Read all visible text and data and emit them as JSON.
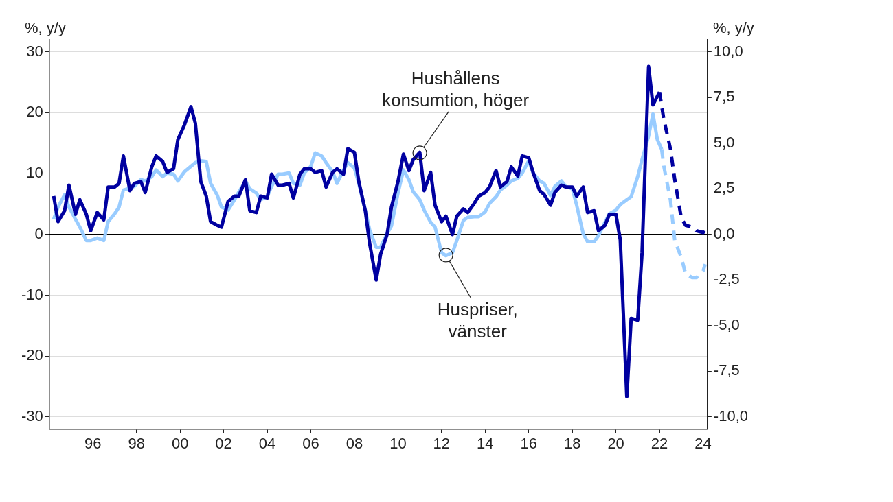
{
  "chart_data": {
    "type": "line",
    "ylabel": "%, y/y",
    "y2label": "%, y/y",
    "xlim": [
      1994,
      2024.2
    ],
    "xticks": [
      {
        "value": 1996,
        "label": "96"
      },
      {
        "value": 1998,
        "label": "98"
      },
      {
        "value": 2000,
        "label": "00"
      },
      {
        "value": 2002,
        "label": "02"
      },
      {
        "value": 2004,
        "label": "04"
      },
      {
        "value": 2006,
        "label": "06"
      },
      {
        "value": 2008,
        "label": "08"
      },
      {
        "value": 2010,
        "label": "10"
      },
      {
        "value": 2012,
        "label": "12"
      },
      {
        "value": 2014,
        "label": "14"
      },
      {
        "value": 2016,
        "label": "16"
      },
      {
        "value": 2018,
        "label": "18"
      },
      {
        "value": 2020,
        "label": "20"
      },
      {
        "value": 2022,
        "label": "22"
      },
      {
        "value": 2024,
        "label": "24"
      }
    ],
    "ylim": [
      -32,
      32
    ],
    "yticks": [
      -30,
      -20,
      -10,
      0,
      10,
      20,
      30
    ],
    "y2lim": [
      -10.67,
      10.67
    ],
    "y2ticks": [
      {
        "value": -10,
        "label": "-10,0"
      },
      {
        "value": -7.5,
        "label": "-7,5"
      },
      {
        "value": -5,
        "label": "-5,0"
      },
      {
        "value": -2.5,
        "label": "-2,5"
      },
      {
        "value": 0,
        "label": "0,0"
      },
      {
        "value": 2.5,
        "label": "2,5"
      },
      {
        "value": 5,
        "label": "5,0"
      },
      {
        "value": 7.5,
        "label": "7,5"
      },
      {
        "value": 10,
        "label": "10,0"
      }
    ],
    "grid": "y",
    "marker": "none",
    "legend": false,
    "ref_lines": [
      {
        "axis": "y",
        "value": 0,
        "color": "#000000"
      }
    ],
    "annotations": [
      {
        "text": "Hushållens konsumtion, höger",
        "x": 2011.0,
        "y": 13.4
      },
      {
        "text": "Huspriser, vänster",
        "x": 2012.2,
        "y": -3.4
      }
    ],
    "series": [
      {
        "color": "#0000a0",
        "axis": "y2",
        "line_style": "solid",
        "x": [
          1994.2,
          1994.4,
          1994.7,
          1994.9,
          1995.2,
          1995.4,
          1995.7,
          1995.9,
          1996.2,
          1996.5,
          1996.7,
          1997.0,
          1997.2,
          1997.4,
          1997.7,
          1997.9,
          1998.2,
          1998.4,
          1998.7,
          1998.9,
          1999.2,
          1999.4,
          1999.7,
          1999.9,
          2000.2,
          2000.5,
          2000.7,
          2000.95,
          2001.2,
          2001.4,
          2001.7,
          2001.9,
          2002.2,
          2002.5,
          2002.7,
          2003.0,
          2003.2,
          2003.5,
          2003.7,
          2004.0,
          2004.2,
          2004.5,
          2004.7,
          2005.0,
          2005.2,
          2005.5,
          2005.7,
          2006.0,
          2006.2,
          2006.5,
          2006.7,
          2007.0,
          2007.2,
          2007.5,
          2007.7,
          2008.0,
          2008.2,
          2008.5,
          2008.7,
          2009.0,
          2009.2,
          2009.5,
          2009.7,
          2010.0,
          2010.25,
          2010.5,
          2010.7,
          2011.0,
          2011.2,
          2011.5,
          2011.7,
          2012.0,
          2012.2,
          2012.5,
          2012.7,
          2013.0,
          2013.2,
          2013.5,
          2013.7,
          2014.0,
          2014.2,
          2014.5,
          2014.7,
          2015.0,
          2015.2,
          2015.5,
          2015.7,
          2016.0,
          2016.2,
          2016.5,
          2016.7,
          2017.0,
          2017.2,
          2017.5,
          2017.7,
          2018.0,
          2018.2,
          2018.5,
          2018.7,
          2019.0,
          2019.2,
          2019.5,
          2019.7,
          2020.0,
          2020.2,
          2020.5,
          2020.7,
          2021.0,
          2021.2,
          2021.5,
          2021.7,
          2022.0
        ],
        "values": [
          2.1,
          0.7,
          1.3,
          2.7,
          1.1,
          1.9,
          1.1,
          0.2,
          1.2,
          0.8,
          2.6,
          2.6,
          2.8,
          4.3,
          2.4,
          2.8,
          2.9,
          2.3,
          3.7,
          4.3,
          4.0,
          3.4,
          3.6,
          5.2,
          6.0,
          7.0,
          6.1,
          2.9,
          2.1,
          0.7,
          0.5,
          0.4,
          1.8,
          2.1,
          2.1,
          3.0,
          1.3,
          1.2,
          2.1,
          2.0,
          3.3,
          2.7,
          2.7,
          2.8,
          2.0,
          3.3,
          3.6,
          3.6,
          3.4,
          3.5,
          2.6,
          3.4,
          3.6,
          3.3,
          4.7,
          4.5,
          2.9,
          1.3,
          -0.5,
          -2.5,
          -1.1,
          0.0,
          1.5,
          2.9,
          4.4,
          3.5,
          4.1,
          4.5,
          2.4,
          3.4,
          1.6,
          0.7,
          1.0,
          0.0,
          1.0,
          1.4,
          1.2,
          1.7,
          2.1,
          2.3,
          2.6,
          3.5,
          2.6,
          2.9,
          3.7,
          3.2,
          4.3,
          4.2,
          3.4,
          2.4,
          2.2,
          1.6,
          2.3,
          2.7,
          2.6,
          2.6,
          2.1,
          2.6,
          1.2,
          1.3,
          0.2,
          0.5,
          1.1,
          1.1,
          -0.3,
          -8.9,
          -4.6,
          -4.7,
          -1.0,
          9.2,
          7.1,
          7.8
        ]
      },
      {
        "color": "#0000a0",
        "axis": "y2",
        "line_style": "dashed",
        "x": [
          2022.0,
          2022.2,
          2022.5,
          2022.7,
          2023.0,
          2023.2,
          2023.5,
          2023.7,
          2024.0,
          2024.1
        ],
        "values": [
          7.8,
          6.3,
          4.7,
          3.0,
          0.9,
          0.5,
          0.4,
          0.2,
          0.1,
          0.3
        ]
      },
      {
        "color": "#99ccff",
        "axis": "y",
        "line_style": "solid",
        "x": [
          1994.2,
          1994.4,
          1994.7,
          1994.9,
          1995.2,
          1995.4,
          1995.7,
          1995.9,
          1996.2,
          1996.5,
          1996.7,
          1997.0,
          1997.2,
          1997.4,
          1997.7,
          1997.9,
          1998.2,
          1998.4,
          1998.7,
          1998.9,
          1999.2,
          1999.4,
          1999.7,
          1999.9,
          2000.2,
          2000.5,
          2000.7,
          2000.95,
          2001.2,
          2001.4,
          2001.7,
          2001.9,
          2002.2,
          2002.5,
          2002.7,
          2003.0,
          2003.2,
          2003.5,
          2003.7,
          2004.0,
          2004.2,
          2004.5,
          2004.7,
          2005.0,
          2005.2,
          2005.5,
          2005.7,
          2006.0,
          2006.2,
          2006.5,
          2006.7,
          2007.0,
          2007.2,
          2007.5,
          2007.7,
          2008.0,
          2008.2,
          2008.5,
          2008.7,
          2009.0,
          2009.2,
          2009.5,
          2009.7,
          2010.0,
          2010.25,
          2010.5,
          2010.7,
          2011.0,
          2011.2,
          2011.5,
          2011.7,
          2012.0,
          2012.2,
          2012.5,
          2012.7,
          2013.0,
          2013.2,
          2013.5,
          2013.7,
          2014.0,
          2014.2,
          2014.5,
          2014.7,
          2015.0,
          2015.2,
          2015.5,
          2015.7,
          2016.0,
          2016.2,
          2016.5,
          2016.7,
          2017.0,
          2017.2,
          2017.5,
          2017.7,
          2018.0,
          2018.2,
          2018.5,
          2018.7,
          2019.0,
          2019.2,
          2019.5,
          2019.7,
          2020.0,
          2020.2,
          2020.5,
          2020.7,
          2021.0,
          2021.2,
          2021.5,
          2021.7,
          2021.9,
          2022.1
        ],
        "values": [
          2.5,
          4.5,
          6.5,
          4.5,
          2.5,
          1.2,
          -1.0,
          -1.0,
          -0.6,
          -1.0,
          2.1,
          3.4,
          4.5,
          7.3,
          7.6,
          7.9,
          9.0,
          8.8,
          9.5,
          10.6,
          9.5,
          10.1,
          9.9,
          8.8,
          10.3,
          11.2,
          11.8,
          12.1,
          12.0,
          8.4,
          6.5,
          4.5,
          4.0,
          5.7,
          7.0,
          8.8,
          7.5,
          6.8,
          5.7,
          6.2,
          7.9,
          9.9,
          9.9,
          10.1,
          8.4,
          8.1,
          10.1,
          11.2,
          13.4,
          12.9,
          11.8,
          10.3,
          8.4,
          10.6,
          11.8,
          10.9,
          8.4,
          4.0,
          0.7,
          -2.1,
          -2.1,
          0.1,
          1.4,
          6.8,
          10.6,
          9.0,
          7.0,
          5.7,
          4.0,
          2.0,
          1.2,
          -3.0,
          -3.5,
          -3.0,
          -1.0,
          2.3,
          2.8,
          2.9,
          2.9,
          3.7,
          5.1,
          6.2,
          7.3,
          8.1,
          8.8,
          9.2,
          10.1,
          12.1,
          10.1,
          8.8,
          8.4,
          6.4,
          7.9,
          8.8,
          7.9,
          7.5,
          4.8,
          0.1,
          -1.2,
          -1.2,
          -0.2,
          2.0,
          3.4,
          4.0,
          4.9,
          5.7,
          6.2,
          9.5,
          12.3,
          16.2,
          19.8,
          15.6,
          14.0
        ]
      },
      {
        "color": "#99ccff",
        "axis": "y",
        "line_style": "dashed",
        "x": [
          2022.1,
          2022.2,
          2022.5,
          2022.7,
          2023.0,
          2023.2,
          2023.5,
          2023.7,
          2024.0,
          2024.1
        ],
        "values": [
          14.0,
          11.2,
          5.7,
          -1.0,
          -3.8,
          -6.5,
          -7.1,
          -7.1,
          -6.0,
          -4.9
        ]
      }
    ]
  }
}
